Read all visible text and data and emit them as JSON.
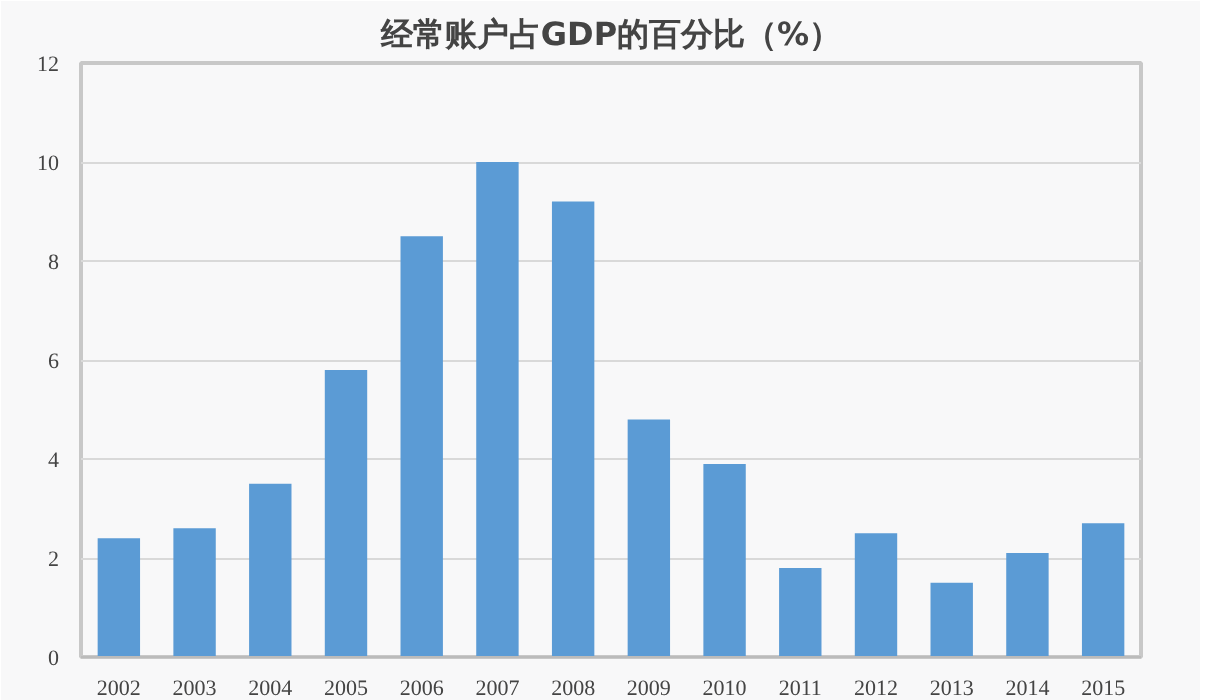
{
  "chart_data": {
    "type": "bar",
    "title": "经常账户占GDP的百分比（%）",
    "categories": [
      "2002",
      "2003",
      "2004",
      "2005",
      "2006",
      "2007",
      "2008",
      "2009",
      "2010",
      "2011",
      "2012",
      "2013",
      "2014",
      "2015"
    ],
    "values": [
      2.4,
      2.6,
      3.5,
      5.8,
      8.5,
      10.0,
      9.2,
      4.8,
      3.9,
      1.8,
      2.5,
      1.5,
      2.1,
      2.7
    ],
    "color": "#5b9bd5",
    "ylim": [
      0,
      12
    ],
    "yticks": [
      0,
      2,
      4,
      6,
      8,
      10,
      12
    ],
    "grid": "y"
  }
}
